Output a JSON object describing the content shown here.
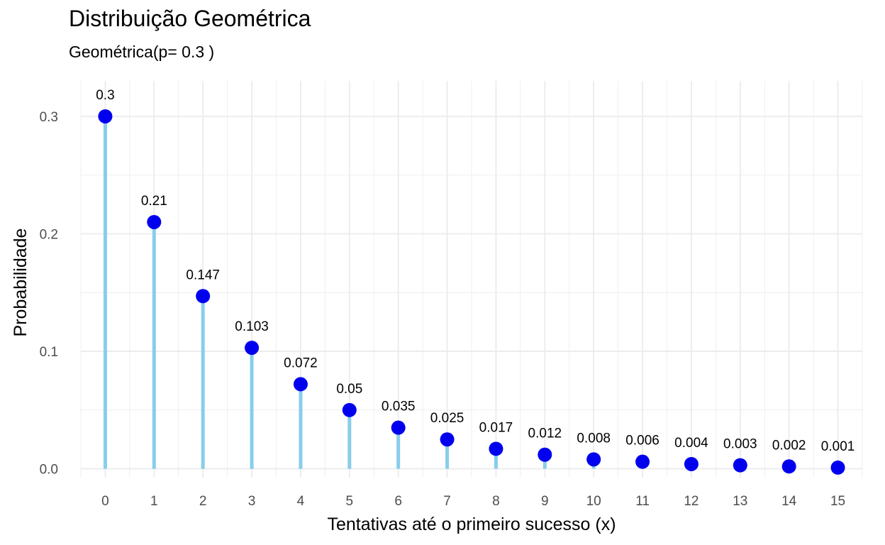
{
  "chart_data": {
    "type": "lollipop",
    "title": "Distribuição Geométrica",
    "subtitle": "Geométrica(p= 0.3 )",
    "xlabel": "Tentativas até o primeiro sucesso (x)",
    "ylabel": "Probabilidade",
    "x": [
      0,
      1,
      2,
      3,
      4,
      5,
      6,
      7,
      8,
      9,
      10,
      11,
      12,
      13,
      14,
      15
    ],
    "values": [
      0.3,
      0.21,
      0.147,
      0.103,
      0.072,
      0.05,
      0.035,
      0.025,
      0.017,
      0.012,
      0.008,
      0.006,
      0.004,
      0.003,
      0.002,
      0.001
    ],
    "data_labels": [
      "0.3",
      "0.21",
      "0.147",
      "0.103",
      "0.072",
      "0.05",
      "0.035",
      "0.025",
      "0.017",
      "0.012",
      "0.008",
      "0.006",
      "0.004",
      "0.003",
      "0.002",
      "0.001"
    ],
    "x_ticks": [
      "0",
      "1",
      "2",
      "3",
      "4",
      "5",
      "6",
      "7",
      "8",
      "9",
      "10",
      "11",
      "12",
      "13",
      "14",
      "15"
    ],
    "y_ticks": [
      "0.0",
      "0.1",
      "0.2",
      "0.3"
    ],
    "y_tick_values": [
      0,
      0.1,
      0.2,
      0.3
    ],
    "xlim": [
      -0.5,
      15.5
    ],
    "ylim": [
      -0.0075,
      0.3302
    ],
    "grid": true,
    "colors": {
      "stem": "#87CEEB",
      "point": "#0000EE",
      "grid": "#ebebeb"
    }
  }
}
